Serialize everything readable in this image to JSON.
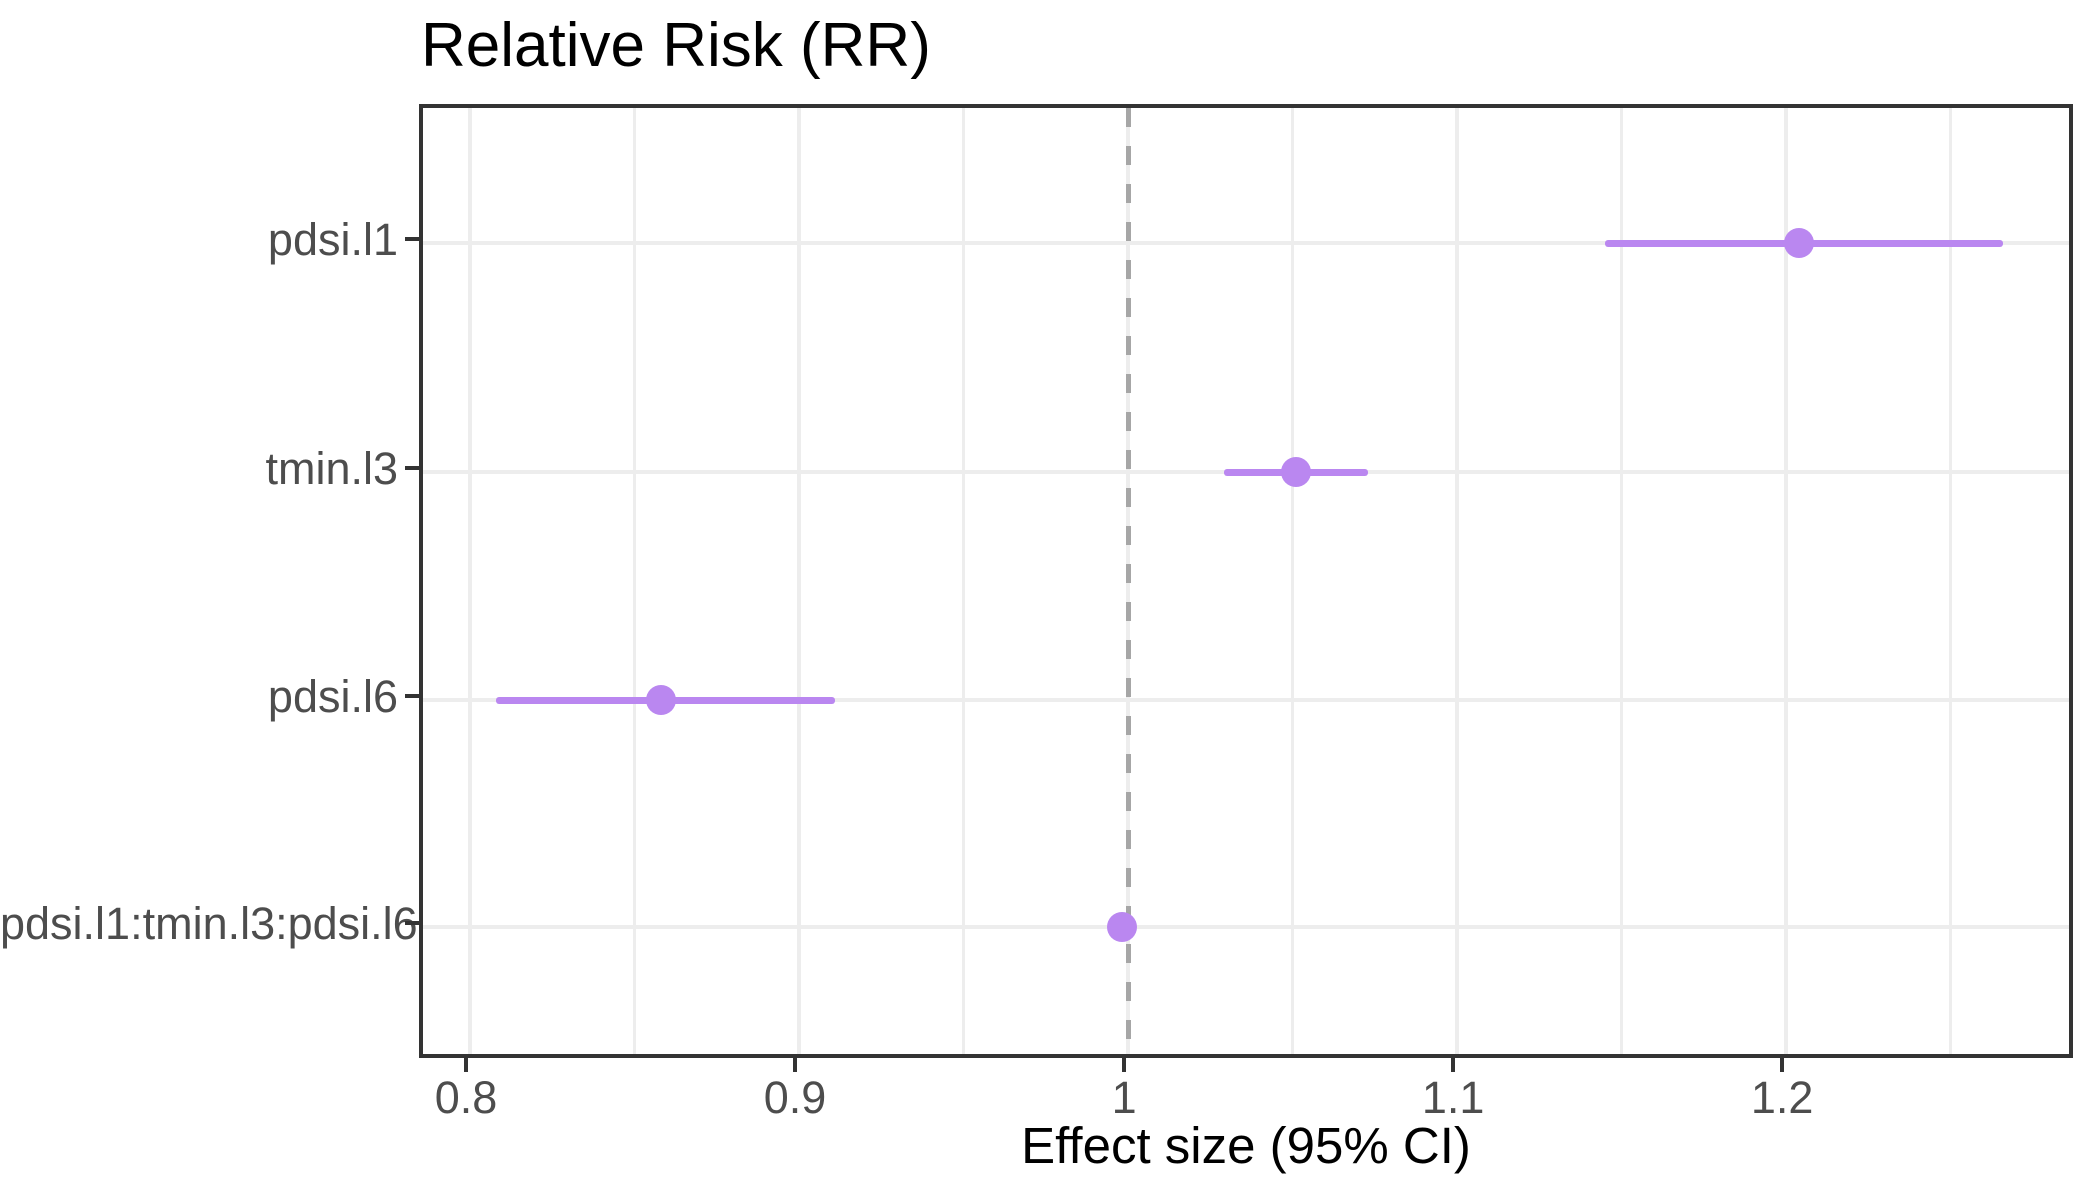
{
  "chart_data": {
    "type": "scatter",
    "subtype": "forest-plot-pointrange",
    "title": "Relative Risk (RR)",
    "xlabel": "Effect size (95% CI)",
    "ylabel": "",
    "legend": "none",
    "grid": "on",
    "categories": [
      "pdsi.l1",
      "tmin.l3",
      "pdsi.l6",
      "pdsi.l1:tmin.l3:pdsi.l6"
    ],
    "points": [
      {
        "label": "pdsi.l1",
        "estimate": 1.204,
        "ci_low": 1.145,
        "ci_high": 1.266
      },
      {
        "label": "tmin.l3",
        "estimate": 1.051,
        "ci_low": 1.029,
        "ci_high": 1.073
      },
      {
        "label": "pdsi.l6",
        "estimate": 0.858,
        "ci_low": 0.808,
        "ci_high": 0.911
      },
      {
        "label": "pdsi.l1:tmin.l3:pdsi.l6",
        "estimate": 0.998,
        "ci_low": 0.995,
        "ci_high": 1.002
      }
    ],
    "reference_line_x": 1,
    "x_axis": {
      "range": [
        0.7857,
        1.2884
      ],
      "ticks": [
        0.8,
        0.9,
        1.0,
        1.1,
        1.2
      ],
      "tick_labels": [
        "0.8",
        "0.9",
        "1",
        "1.1",
        "1.2"
      ],
      "minor_gridlines": [
        0.85,
        0.95,
        1.05,
        1.15,
        1.25
      ]
    },
    "colors": {
      "point": "#ba87f0",
      "interval": "#ba87f0",
      "reference_line": "#a6a6a6",
      "gridline": "#ededed",
      "panel_border": "#333333",
      "axis_text": "#4d4d4d",
      "title_text": "#000000"
    }
  }
}
